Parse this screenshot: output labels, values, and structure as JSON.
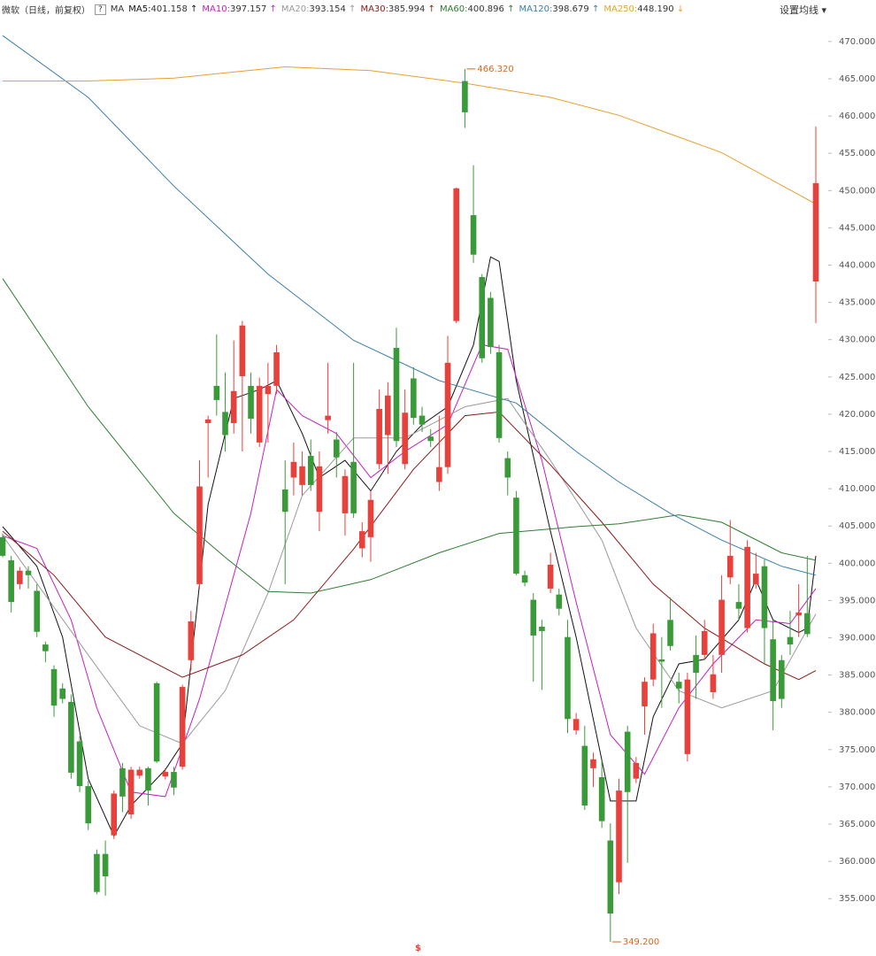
{
  "chart_data": {
    "type": "candlestick",
    "title": "微软（日线，前复权）",
    "help_icon": "?",
    "ma_label": "MA",
    "settings_button": "设置均线 ▾",
    "bottom_marker": "$",
    "high_label": "466.320",
    "low_label": "349.200",
    "up_color": "#e8403a",
    "down_color": "#3a9a3a",
    "ylim": [
      347.9,
      472.6
    ],
    "yticks": [
      {
        "value": 470,
        "label": "470.000"
      },
      {
        "value": 465,
        "label": "465.000"
      },
      {
        "value": 460,
        "label": "460.000"
      },
      {
        "value": 455,
        "label": "455.000"
      },
      {
        "value": 450,
        "label": "450.000"
      },
      {
        "value": 445,
        "label": "445.000"
      },
      {
        "value": 440,
        "label": "440.000"
      },
      {
        "value": 435,
        "label": "435.000"
      },
      {
        "value": 430,
        "label": "430.000"
      },
      {
        "value": 425,
        "label": "425.000"
      },
      {
        "value": 420,
        "label": "420.000"
      },
      {
        "value": 415,
        "label": "415.000"
      },
      {
        "value": 410,
        "label": "410.000"
      },
      {
        "value": 405,
        "label": "405.000"
      },
      {
        "value": 400,
        "label": "400.000"
      },
      {
        "value": 395,
        "label": "395.000"
      },
      {
        "value": 390,
        "label": "390.000"
      },
      {
        "value": 385,
        "label": "385.000"
      },
      {
        "value": 380,
        "label": "380.000"
      },
      {
        "value": 375,
        "label": "375.000"
      },
      {
        "value": 370,
        "label": "370.000"
      },
      {
        "value": 365,
        "label": "365.000"
      },
      {
        "value": 360,
        "label": "360.000"
      },
      {
        "value": 355,
        "label": "355.000"
      }
    ],
    "open": [
      403.5,
      400.4,
      397.2,
      399,
      396.3,
      389.1,
      385.8,
      383.2,
      381.4,
      376.1,
      370.1,
      361,
      361,
      363.5,
      372.5,
      366.3,
      371.5,
      372.5,
      383.9,
      371.4,
      372,
      372.7,
      387,
      397.2,
      418.8,
      423.8,
      420.3,
      418.8,
      425.1,
      423.8,
      416.2,
      422.7,
      423.8,
      409.9,
      411.5,
      410.5,
      414.4,
      406.9,
      419.2,
      416.6,
      406.7,
      413.6,
      402,
      403.5,
      413.3,
      417.2,
      428.9,
      413.3,
      424.8,
      419.8,
      417,
      410.9,
      412.9,
      432.5,
      464.7,
      446.7,
      438.4,
      435.6,
      428.3,
      414.1,
      408.8,
      398.4,
      395.1,
      391.5,
      396.6,
      395.8,
      390.1,
      377.6,
      375.5,
      372.5,
      371.3,
      362.8,
      357.2,
      377.4,
      371.1,
      380.8,
      384.4,
      387.1,
      392.4,
      384.1,
      374.4,
      387.7,
      387.7,
      382.7,
      387.7,
      398.1,
      394.8,
      391.3,
      397.2,
      399.6,
      389.8,
      387,
      390.1,
      393,
      393.3,
      437.8
    ],
    "high": [
      404,
      401,
      399.5,
      399.6,
      397.2,
      389.5,
      386.3,
      383.9,
      382.4,
      376.8,
      370.8,
      361.6,
      362.8,
      369.5,
      373.2,
      372.7,
      372.7,
      372.7,
      384.1,
      372.5,
      372.7,
      383.7,
      393.6,
      413.8,
      419.8,
      430.7,
      425.6,
      429.9,
      432.5,
      425.6,
      424.9,
      426.9,
      429.3,
      413.8,
      416.2,
      415,
      416.6,
      415,
      426.9,
      417.6,
      412.6,
      426.9,
      405.5,
      409.7,
      423.3,
      424.3,
      431.6,
      423.3,
      426.3,
      421,
      418,
      419.8,
      430.5,
      450.4,
      466.32,
      453.4,
      438.8,
      436.4,
      429.3,
      415,
      409.7,
      399,
      396,
      392.4,
      401.4,
      396.6,
      392.4,
      379.9,
      378.2,
      374.6,
      373.5,
      365.1,
      371.1,
      378.2,
      374,
      384.7,
      391.9,
      390.1,
      395.4,
      385.3,
      385.3,
      390.3,
      392.4,
      387.7,
      398.4,
      405.8,
      397.2,
      403.1,
      401.4,
      400.5,
      392.4,
      387.7,
      393.6,
      397.2,
      401,
      458.6
    ],
    "low": [
      400.8,
      393.4,
      396.5,
      396.6,
      390.1,
      386.7,
      379.4,
      381.2,
      371.1,
      369.3,
      364.2,
      355.6,
      355.4,
      363,
      366.6,
      365.7,
      371.1,
      367.5,
      373.2,
      371,
      368.9,
      372.3,
      385.6,
      396.6,
      411.5,
      419.8,
      415,
      417.4,
      415,
      417.4,
      415.6,
      416.2,
      422.7,
      397.2,
      409.1,
      409.1,
      409.7,
      404.3,
      417.4,
      411.5,
      403.7,
      406.1,
      400.8,
      400.2,
      412.6,
      412,
      415.6,
      412.6,
      418.6,
      417.6,
      415.6,
      409.7,
      412,
      432.2,
      458.4,
      440.3,
      426.9,
      428.1,
      416.2,
      409.1,
      398.4,
      396.9,
      384.1,
      383,
      396,
      393,
      377.2,
      377,
      366.9,
      370,
      364.5,
      349.2,
      355.6,
      359.8,
      370.5,
      377,
      383.5,
      380.6,
      388.3,
      381.2,
      373.4,
      381.8,
      387.1,
      381.8,
      385.3,
      397.2,
      392.4,
      390.7,
      396.6,
      386.5,
      377.6,
      380.6,
      387.7,
      390.1,
      390.1,
      432.2
    ],
    "close": [
      401,
      394.8,
      399,
      398.4,
      390.8,
      388.2,
      380.9,
      381.8,
      371.9,
      370.1,
      365.1,
      355.9,
      358,
      369.1,
      368.7,
      372.3,
      372.3,
      369.5,
      373.4,
      372,
      369.9,
      383.4,
      392.2,
      410.3,
      419.3,
      421.9,
      417.2,
      423.1,
      431.9,
      419.4,
      423.8,
      423.8,
      428.3,
      406.9,
      413.6,
      413,
      410.5,
      413,
      419.8,
      414.2,
      411.7,
      406.7,
      404.3,
      408.5,
      420.7,
      422.5,
      416.4,
      420.2,
      419.5,
      418.6,
      416.4,
      412.9,
      426.9,
      450.3,
      460.5,
      441.4,
      427.5,
      429,
      416.8,
      411.5,
      398.6,
      397.4,
      390.3,
      390.9,
      399.8,
      393.9,
      379.1,
      379.1,
      367.5,
      373.7,
      365.4,
      353,
      369.5,
      369.3,
      373.2,
      384.1,
      390.6,
      386.8,
      388.9,
      383.2,
      384.4,
      385.3,
      390.9,
      385.1,
      395.1,
      401,
      393.9,
      402.2,
      398.6,
      391.3,
      381.5,
      381.8,
      389.1,
      393.4,
      390.5,
      451
    ],
    "series": [
      {
        "name": "MA5",
        "latest": "401.158",
        "trend": "↑",
        "color": "#111111",
        "x": [
          0,
          4,
          7,
          10,
          13,
          15,
          19,
          21,
          24,
          27,
          30,
          32,
          35,
          37,
          40,
          43,
          46,
          49,
          52,
          55,
          57,
          58,
          60,
          64,
          67,
          71,
          74,
          76,
          79,
          82,
          86,
          88,
          90,
          93,
          94,
          95
        ],
        "values": [
          404.9,
          399.6,
          390.1,
          371.1,
          363.4,
          367.5,
          372.3,
          375.8,
          407.9,
          422.1,
          423.3,
          424.5,
          417.4,
          411.5,
          413.8,
          409.7,
          415,
          418.6,
          421,
          429.3,
          441.1,
          440.5,
          424.5,
          404.3,
          390.1,
          368.1,
          368.1,
          379.4,
          386.5,
          387.1,
          392.4,
          397.8,
          392.4,
          390.7,
          391.3,
          401
        ]
      },
      {
        "name": "MA10",
        "latest": "397.157",
        "trend": "↑",
        "color": "#c020c0",
        "x": [
          0,
          4,
          8,
          11,
          15,
          19,
          23,
          29,
          32,
          35,
          39,
          43,
          47,
          52,
          56,
          59,
          63,
          67,
          71,
          75,
          79,
          83,
          88,
          92,
          95
        ],
        "values": [
          403.7,
          402,
          392.4,
          380.6,
          369.3,
          368.7,
          381.8,
          406.7,
          423.3,
          419.8,
          417.4,
          411.5,
          415,
          418.6,
          429.3,
          428.7,
          413.8,
          394.8,
          377,
          371.7,
          380.6,
          386.5,
          392.4,
          391.9,
          396.6
        ]
      },
      {
        "name": "MA20",
        "latest": "393.154",
        "trend": "↑",
        "color": "#9a9a9a",
        "x": [
          0,
          10,
          16,
          21,
          26,
          31,
          35,
          41,
          47,
          54,
          59,
          64,
          70,
          74,
          79,
          84,
          90,
          95
        ],
        "values": [
          403.7,
          387.7,
          378.2,
          375.8,
          382.9,
          396,
          409.1,
          416.8,
          416.8,
          421,
          422.1,
          413.8,
          403.1,
          391.3,
          382.9,
          380.6,
          382.9,
          393.2
        ]
      },
      {
        "name": "MA30",
        "latest": "385.994",
        "trend": "↑",
        "color": "#8b1a1a",
        "x": [
          0,
          6,
          12,
          21,
          28,
          34,
          41,
          48,
          54,
          58,
          64,
          70,
          76,
          82,
          89,
          93,
          95
        ],
        "values": [
          404.3,
          398.4,
          390.1,
          384.7,
          387.7,
          392.4,
          401.9,
          412.6,
          419.8,
          420.3,
          413.2,
          405.5,
          397.2,
          391.3,
          386.5,
          384.4,
          385.6
        ]
      },
      {
        "name": "MA60",
        "latest": "400.896",
        "trend": "↑",
        "color": "#2e7d32",
        "x": [
          0,
          10,
          20,
          26,
          31,
          36,
          43,
          51,
          58,
          67,
          72,
          79,
          84,
          91,
          95
        ],
        "values": [
          438.2,
          421,
          406.7,
          400.8,
          396.2,
          396,
          397.8,
          401.4,
          404,
          404.9,
          405.3,
          406.5,
          405.5,
          401.4,
          400.4
        ]
      },
      {
        "name": "MA120",
        "latest": "398.679",
        "trend": "↑",
        "color": "#3a7fa8",
        "x": [
          0,
          10,
          20,
          31,
          41,
          51,
          60,
          67,
          72,
          78,
          84,
          91,
          95
        ],
        "values": [
          470.8,
          462.5,
          450.6,
          438.8,
          429.9,
          424.5,
          421.5,
          415,
          410.9,
          406.7,
          403.1,
          399.6,
          398.4
        ]
      },
      {
        "name": "MA250",
        "latest": "448.190",
        "trend": "↓",
        "color": "#e8a030",
        "x": [
          0,
          10,
          20,
          33,
          43,
          54,
          64,
          72,
          84,
          95
        ],
        "values": [
          464.7,
          464.7,
          465.1,
          466.6,
          466.1,
          464.4,
          462.5,
          460.1,
          455.1,
          448.2
        ]
      }
    ]
  }
}
